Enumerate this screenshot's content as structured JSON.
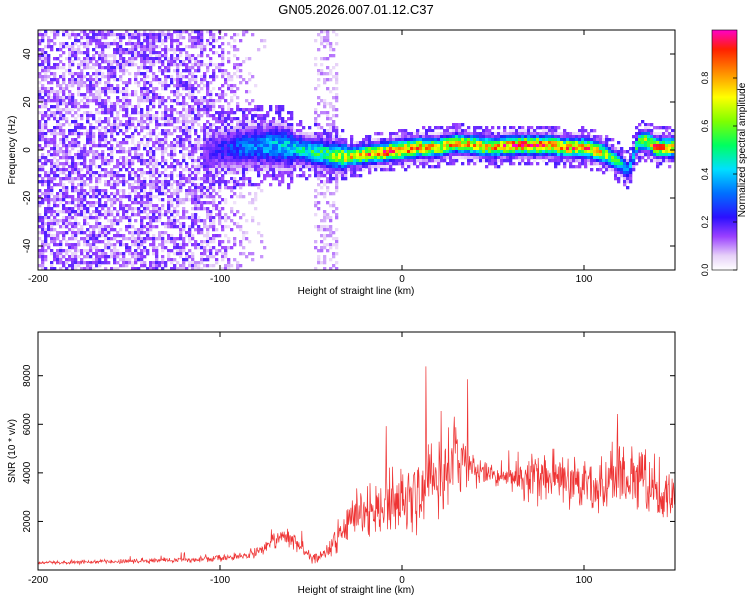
{
  "page": {
    "title": "GN05.2026.007.01.12.C37"
  },
  "chart_data": [
    {
      "type": "heatmap",
      "title": "GN05.2026.007.01.12.C37",
      "xlabel": "Height of straight line (km)",
      "ylabel": "Frequency (Hz)",
      "xlim": [
        -200,
        150
      ],
      "ylim": [
        -50,
        50
      ],
      "x_ticks": [
        -200,
        -100,
        0,
        100
      ],
      "y_ticks": [
        -40,
        -20,
        0,
        20,
        40
      ],
      "grid": false,
      "colorbar": {
        "label": "Normalized spectral amplitude",
        "range": [
          0,
          1
        ],
        "ticks": [
          "0.0",
          "0.2",
          "0.4",
          "0.6",
          "0.8"
        ],
        "placement": "right"
      },
      "ridge": {
        "description_x": [
          -110,
          -90,
          -70,
          -55,
          -40,
          -30,
          -20,
          -10,
          0,
          10,
          20,
          30,
          40,
          50,
          60,
          70,
          80,
          90,
          100,
          110,
          120,
          125,
          130,
          135,
          140,
          150
        ],
        "center_freq": [
          -1,
          1,
          2,
          0,
          -2,
          -3,
          -2,
          -1,
          0,
          1,
          1,
          3,
          2,
          1,
          2,
          2,
          2,
          1,
          1,
          -1,
          -5,
          -9,
          3,
          4,
          1,
          1
        ],
        "peak_amplitude": [
          0.15,
          0.3,
          0.4,
          0.45,
          0.55,
          0.7,
          0.8,
          0.85,
          0.9,
          0.85,
          0.75,
          0.8,
          0.75,
          0.8,
          0.85,
          0.9,
          0.85,
          0.8,
          0.85,
          0.75,
          0.5,
          0.35,
          0.55,
          0.7,
          0.85,
          0.8
        ]
      },
      "noise_region_x": [
        -200,
        -75
      ],
      "noise_strip_x": [
        -48,
        -35
      ]
    },
    {
      "type": "line",
      "xlabel": "Height of straight line (km)",
      "ylabel": "SNR (10 * v/v)",
      "xlim": [
        -200,
        150
      ],
      "ylim": [
        0,
        9800
      ],
      "x_ticks": [
        -200,
        -100,
        0,
        100
      ],
      "y_ticks": [
        2000,
        4000,
        6000,
        8000
      ],
      "grid": false,
      "series": [
        {
          "name": "SNR",
          "color": "#ee3333",
          "x": [
            -200,
            -180,
            -160,
            -140,
            -120,
            -100,
            -90,
            -80,
            -75,
            -70,
            -65,
            -60,
            -55,
            -50,
            -45,
            -40,
            -35,
            -30,
            -25,
            -20,
            -15,
            -10,
            -5,
            0,
            5,
            10,
            15,
            20,
            25,
            30,
            35,
            40,
            45,
            50,
            55,
            60,
            65,
            70,
            75,
            80,
            85,
            90,
            95,
            100,
            105,
            110,
            115,
            120,
            125,
            130,
            135,
            140,
            145,
            150
          ],
          "values": [
            300,
            320,
            340,
            380,
            420,
            480,
            550,
            700,
            900,
            1200,
            1500,
            1300,
            900,
            500,
            600,
            900,
            1400,
            1800,
            2100,
            2300,
            2500,
            2600,
            2700,
            2900,
            3100,
            3300,
            3500,
            3800,
            4300,
            4600,
            4500,
            4200,
            4000,
            3900,
            3800,
            3700,
            3800,
            3900,
            3900,
            3800,
            3700,
            3700,
            3600,
            3500,
            3400,
            3400,
            3500,
            3700,
            3900,
            4000,
            3600,
            3300,
            3200,
            3100
          ],
          "spread": [
            100,
            110,
            120,
            140,
            160,
            200,
            250,
            300,
            400,
            600,
            700,
            600,
            400,
            300,
            400,
            700,
            1000,
            1300,
            1500,
            1700,
            1800,
            1900,
            2000,
            2100,
            2200,
            2300,
            2400,
            2600,
            3000,
            2600,
            2000,
            1300,
            800,
            600,
            700,
            900,
            1300,
            1500,
            1700,
            1800,
            1800,
            1800,
            1800,
            1800,
            1800,
            1800,
            1800,
            1900,
            2000,
            2000,
            1800,
            1700,
            1700,
            1600
          ]
        }
      ]
    }
  ]
}
